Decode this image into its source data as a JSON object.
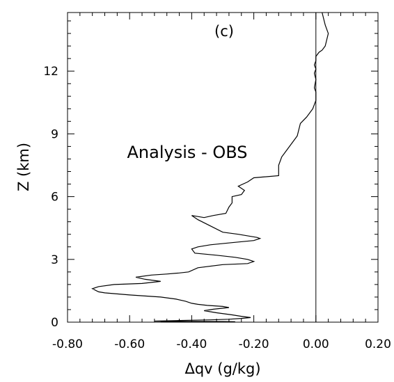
{
  "chart_data": {
    "type": "line",
    "panel_label": "(c)",
    "annotation": "Analysis - OBS",
    "xlabel": "Δqv (g/kg)",
    "ylabel": "Z (km)",
    "xlim": [
      -0.8,
      0.2
    ],
    "ylim": [
      0,
      14.8
    ],
    "x_ticks": [
      -0.8,
      -0.6,
      -0.4,
      -0.2,
      0.0,
      0.2
    ],
    "x_tick_labels": [
      "-0.80",
      "-0.60",
      "-0.40",
      "-0.20",
      "0.00",
      "0.20"
    ],
    "y_ticks": [
      0,
      3,
      6,
      9,
      12
    ],
    "y_tick_labels": [
      "0",
      "3",
      "6",
      "9",
      "12"
    ],
    "grid": false,
    "reference_line_x": 0.0,
    "series": [
      {
        "points": [
          [
            0.02,
            14.8
          ],
          [
            0.03,
            14.2
          ],
          [
            0.04,
            13.8
          ],
          [
            0.035,
            13.5
          ],
          [
            0.03,
            13.2
          ],
          [
            0.02,
            13.0
          ],
          [
            0.01,
            12.9
          ],
          [
            0.0,
            12.7
          ],
          [
            0.0,
            12.5
          ],
          [
            -0.005,
            12.3
          ],
          [
            0.0,
            12.1
          ],
          [
            -0.005,
            11.9
          ],
          [
            0.0,
            11.6
          ],
          [
            -0.005,
            11.2
          ],
          [
            0.0,
            11.0
          ],
          [
            0.0,
            10.6
          ],
          [
            -0.01,
            10.2
          ],
          [
            -0.03,
            9.8
          ],
          [
            -0.05,
            9.5
          ],
          [
            -0.06,
            8.9
          ],
          [
            -0.09,
            8.3
          ],
          [
            -0.11,
            7.9
          ],
          [
            -0.12,
            7.5
          ],
          [
            -0.12,
            7.0
          ],
          [
            -0.2,
            6.9
          ],
          [
            -0.22,
            6.7
          ],
          [
            -0.25,
            6.5
          ],
          [
            -0.23,
            6.3
          ],
          [
            -0.24,
            6.1
          ],
          [
            -0.27,
            6.0
          ],
          [
            -0.27,
            5.7
          ],
          [
            -0.28,
            5.5
          ],
          [
            -0.29,
            5.2
          ],
          [
            -0.33,
            5.1
          ],
          [
            -0.36,
            5.0
          ],
          [
            -0.4,
            5.1
          ],
          [
            -0.38,
            4.9
          ],
          [
            -0.34,
            4.6
          ],
          [
            -0.3,
            4.3
          ],
          [
            -0.25,
            4.2
          ],
          [
            -0.21,
            4.1
          ],
          [
            -0.19,
            4.05
          ],
          [
            -0.18,
            4.0
          ],
          [
            -0.2,
            3.9
          ],
          [
            -0.27,
            3.8
          ],
          [
            -0.34,
            3.7
          ],
          [
            -0.38,
            3.6
          ],
          [
            -0.4,
            3.5
          ],
          [
            -0.39,
            3.3
          ],
          [
            -0.32,
            3.2
          ],
          [
            -0.26,
            3.1
          ],
          [
            -0.22,
            3.0
          ],
          [
            -0.2,
            2.9
          ],
          [
            -0.22,
            2.8
          ],
          [
            -0.3,
            2.75
          ],
          [
            -0.38,
            2.6
          ],
          [
            -0.41,
            2.4
          ],
          [
            -0.44,
            2.35
          ],
          [
            -0.48,
            2.3
          ],
          [
            -0.53,
            2.25
          ],
          [
            -0.58,
            2.15
          ],
          [
            -0.55,
            2.05
          ],
          [
            -0.5,
            1.95
          ],
          [
            -0.56,
            1.85
          ],
          [
            -0.65,
            1.8
          ],
          [
            -0.7,
            1.7
          ],
          [
            -0.72,
            1.6
          ],
          [
            -0.7,
            1.45
          ],
          [
            -0.68,
            1.4
          ],
          [
            -0.6,
            1.3
          ],
          [
            -0.5,
            1.2
          ],
          [
            -0.45,
            1.1
          ],
          [
            -0.42,
            1.0
          ],
          [
            -0.4,
            0.9
          ],
          [
            -0.38,
            0.85
          ],
          [
            -0.35,
            0.8
          ],
          [
            -0.3,
            0.75
          ],
          [
            -0.28,
            0.7
          ],
          [
            -0.33,
            0.62
          ],
          [
            -0.36,
            0.55
          ],
          [
            -0.32,
            0.45
          ],
          [
            -0.27,
            0.35
          ],
          [
            -0.24,
            0.28
          ],
          [
            -0.21,
            0.22
          ],
          [
            -0.24,
            0.18
          ],
          [
            -0.28,
            0.14
          ],
          [
            -0.34,
            0.11
          ],
          [
            -0.44,
            0.08
          ],
          [
            -0.52,
            0.05
          ],
          [
            -0.45,
            0.04
          ],
          [
            -0.3,
            0.03
          ],
          [
            -0.26,
            0.02
          ],
          [
            -0.35,
            0.015
          ],
          [
            -0.5,
            0.01
          ]
        ]
      }
    ]
  }
}
